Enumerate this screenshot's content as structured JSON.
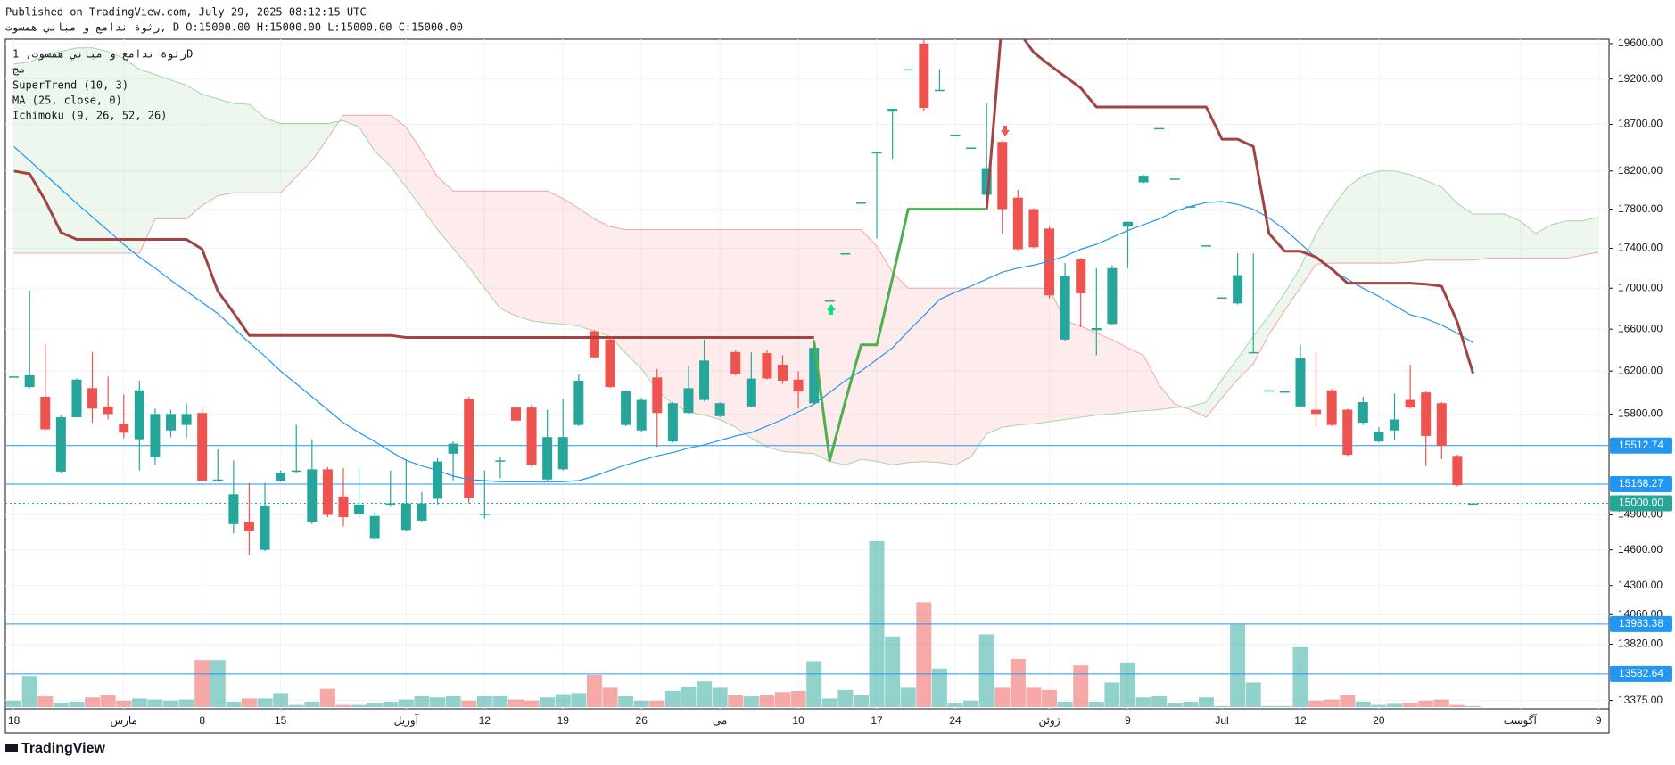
{
  "header": {
    "published": "Published on TradingView.com, July 29, 2025 08:12:15 UTC",
    "quote": "رثوة ندامع و مباني همسوت, D O:15000.00 H:15000.00 L:15000.00 C:15000.00",
    "symbol_line": "رثوة ندامع و مباني همسوت, 1D",
    "volume_label": "مج",
    "brand": "TradingView"
  },
  "chart_data": {
    "type": "candlestick",
    "log_scale": true,
    "grid": true,
    "up_color": "#26a69a",
    "down_color": "#ef5350",
    "ylim": [
      13310,
      19650
    ],
    "yticks": [
      {
        "value": 19600,
        "label": "19600.00"
      },
      {
        "value": 19200,
        "label": "19200.00"
      },
      {
        "value": 18700,
        "label": "18700.00"
      },
      {
        "value": 18200,
        "label": "18200.00"
      },
      {
        "value": 17800,
        "label": "17800.00"
      },
      {
        "value": 17400,
        "label": "17400.00"
      },
      {
        "value": 17000,
        "label": "17000.00"
      },
      {
        "value": 16600,
        "label": "16600.00"
      },
      {
        "value": 16200,
        "label": "16200.00"
      },
      {
        "value": 15800,
        "label": "15800.00"
      },
      {
        "value": 14900,
        "label": "14900.00"
      },
      {
        "value": 14600,
        "label": "14600.00"
      },
      {
        "value": 14300,
        "label": "14300.00"
      },
      {
        "value": 14060,
        "label": "14060.00"
      },
      {
        "value": 13820,
        "label": "13820.00"
      },
      {
        "value": 13375,
        "label": "13375.00"
      }
    ],
    "categories": [
      "18",
      null,
      null,
      null,
      null,
      null,
      null,
      "مارس",
      null,
      null,
      null,
      null,
      "8",
      null,
      null,
      null,
      null,
      "15",
      null,
      null,
      null,
      null,
      null,
      null,
      null,
      "آوریل",
      null,
      null,
      null,
      null,
      "12",
      null,
      null,
      null,
      null,
      "19",
      null,
      null,
      null,
      null,
      "26",
      null,
      null,
      null,
      null,
      "می",
      null,
      null,
      null,
      null,
      "10",
      null,
      null,
      null,
      null,
      "17",
      null,
      null,
      null,
      null,
      "24",
      null,
      null,
      null,
      null,
      null,
      "ژوئن",
      null,
      null,
      null,
      null,
      "9",
      null,
      null,
      null,
      null,
      null,
      "Jul",
      null,
      null,
      null,
      null,
      "12",
      null,
      null,
      null,
      null,
      "20",
      null,
      null,
      null,
      null,
      null,
      null,
      null,
      null,
      "آگوست",
      null,
      null,
      null,
      null,
      "9"
    ],
    "open": [
      16150,
      16050,
      15960,
      15280,
      15770,
      16040,
      15870,
      15710,
      15570,
      15410,
      15650,
      15700,
      15810,
      15200,
      14820,
      14840,
      14600,
      15200,
      15280,
      14840,
      15300,
      15060,
      14910,
      14700,
      14990,
      14770,
      14850,
      15040,
      15440,
      15940,
      14900,
      15370,
      15860,
      15860,
      15210,
      15300,
      15700,
      16580,
      16500,
      15700,
      15650,
      16140,
      15550,
      15810,
      15930,
      15780,
      16380,
      15870,
      16370,
      16260,
      16120,
      15900,
      16880,
      17350,
      17870,
      18400,
      18840,
      19310,
      19600,
      19080,
      18590,
      18450,
      17950,
      18510,
      17920,
      17800,
      17600,
      16500,
      17290,
      16590,
      16650,
      17620,
      18080,
      18660,
      18120,
      17830,
      17430,
      16910,
      16850,
      16380,
      16020,
      16010,
      15870,
      15840,
      16020,
      15840,
      15720,
      15550,
      15650,
      15930,
      16000,
      15900,
      15420,
      15000,
      null,
      null,
      null,
      null,
      null,
      null,
      null,
      null
    ],
    "high": [
      16150,
      16980,
      16450,
      15790,
      16130,
      16380,
      16150,
      15980,
      16110,
      15850,
      15840,
      15900,
      15870,
      15480,
      15380,
      15180,
      15180,
      15290,
      15700,
      15570,
      15320,
      15310,
      15310,
      14920,
      15290,
      15390,
      15100,
      15400,
      15550,
      15960,
      15290,
      15410,
      15870,
      15890,
      15840,
      15940,
      16170,
      16590,
      16510,
      16020,
      15950,
      16220,
      15910,
      16250,
      16500,
      15910,
      16400,
      16380,
      16400,
      16350,
      16200,
      16500,
      16880,
      17350,
      17870,
      18400,
      18870,
      19310,
      19650,
      19310,
      18590,
      18450,
      18930,
      18520,
      18000,
      17810,
      17620,
      17250,
      17300,
      17200,
      17230,
      17670,
      18160,
      18660,
      18120,
      17830,
      17430,
      16910,
      17350,
      17350,
      16020,
      16010,
      16450,
      16380,
      16030,
      15850,
      15960,
      15680,
      15990,
      16260,
      16010,
      15910,
      15430,
      15000,
      null,
      null,
      null,
      null,
      null,
      null,
      null,
      null
    ],
    "low": [
      16150,
      16040,
      15650,
      15270,
      15770,
      15720,
      15750,
      15580,
      15290,
      15340,
      15590,
      15580,
      15190,
      15190,
      14740,
      14560,
      14590,
      15190,
      15270,
      14820,
      14880,
      14800,
      14870,
      14680,
      14970,
      14760,
      14840,
      14990,
      15200,
      15000,
      14870,
      15220,
      15730,
      15320,
      15200,
      15290,
      15690,
      16320,
      16040,
      15690,
      15640,
      15500,
      15540,
      15800,
      15920,
      15770,
      16160,
      15860,
      16120,
      16080,
      15850,
      15890,
      16880,
      17350,
      17870,
      17500,
      18330,
      19310,
      18850,
      19080,
      18590,
      18450,
      17940,
      17550,
      17380,
      17400,
      16900,
      16490,
      16620,
      16350,
      16640,
      17200,
      18070,
      18660,
      18120,
      17830,
      17430,
      16910,
      16840,
      16380,
      16020,
      16010,
      15860,
      15690,
      15690,
      15420,
      15700,
      15540,
      15560,
      15850,
      15330,
      15390,
      15150,
      15000,
      null,
      null,
      null,
      null,
      null,
      null,
      null,
      null
    ],
    "close": [
      16150,
      16160,
      15660,
      15770,
      16120,
      15850,
      15800,
      15630,
      16020,
      15800,
      15800,
      15800,
      15200,
      15210,
      15080,
      14760,
      14980,
      15270,
      15290,
      15300,
      14900,
      14880,
      14990,
      14890,
      15000,
      15000,
      15000,
      15370,
      15530,
      15050,
      14910,
      15380,
      15740,
      15340,
      15590,
      15590,
      16110,
      16330,
      16050,
      16010,
      15930,
      15810,
      15900,
      16040,
      16300,
      15900,
      16170,
      16130,
      16130,
      16110,
      16010,
      16420,
      16880,
      17350,
      17870,
      18400,
      18870,
      19310,
      18880,
      19080,
      18590,
      18450,
      18230,
      17800,
      17390,
      17410,
      16930,
      17120,
      16950,
      16610,
      17200,
      17670,
      18150,
      18660,
      18120,
      17830,
      17430,
      16910,
      17130,
      16380,
      16020,
      16010,
      16320,
      15800,
      15700,
      15430,
      15910,
      15640,
      15750,
      15860,
      15600,
      15510,
      15160,
      15000,
      null,
      null,
      null,
      null,
      null,
      null,
      null,
      null
    ],
    "volume": [
      6,
      29,
      10,
      4,
      5,
      9,
      11,
      6,
      8,
      7,
      6,
      7,
      44,
      44,
      5,
      8,
      8,
      13,
      2,
      5,
      17,
      2,
      2,
      4,
      5,
      7,
      10,
      9,
      10,
      6,
      10,
      10,
      7,
      6,
      9,
      12,
      13,
      30,
      18,
      10,
      6,
      6,
      15,
      19,
      24,
      18,
      11,
      10,
      11,
      14,
      15,
      43,
      8,
      16,
      11,
      155,
      66,
      18,
      98,
      36,
      4,
      6,
      68,
      18,
      45,
      18,
      16,
      5,
      39,
      5,
      23,
      41,
      9,
      10,
      4,
      5,
      9,
      1,
      77,
      23,
      1,
      1,
      56,
      6,
      7,
      11,
      5,
      2,
      3,
      4,
      6,
      7,
      2,
      1,
      null,
      null,
      null,
      null,
      null,
      null,
      null,
      null
    ],
    "series": [
      {
        "name": "MA (25, close, 0)",
        "color": "#2196f3",
        "values": [
          18460,
          18310,
          18160,
          18010,
          17860,
          17720,
          17580,
          17440,
          17310,
          17200,
          17080,
          16970,
          16860,
          16750,
          16610,
          16470,
          16340,
          16200,
          16080,
          15960,
          15840,
          15720,
          15630,
          15550,
          15460,
          15380,
          15330,
          15290,
          15240,
          15210,
          15200,
          15190,
          15190,
          15190,
          15190,
          15190,
          15200,
          15240,
          15290,
          15340,
          15380,
          15420,
          15450,
          15490,
          15520,
          15560,
          15600,
          15630,
          15690,
          15750,
          15820,
          15890,
          16000,
          16110,
          16200,
          16310,
          16420,
          16580,
          16730,
          16890,
          16960,
          17020,
          17090,
          17160,
          17200,
          17230,
          17270,
          17320,
          17390,
          17440,
          17510,
          17580,
          17640,
          17700,
          17780,
          17830,
          17870,
          17880,
          17850,
          17800,
          17710,
          17590,
          17450,
          17300,
          17180,
          17090,
          17000,
          16920,
          16830,
          16740,
          16700,
          16640,
          16560,
          16470,
          null,
          null,
          null,
          null,
          null,
          null,
          null,
          null
        ]
      }
    ],
    "supertrend": {
      "name": "SuperTrend (10, 3)",
      "up_color": "#4caf50",
      "down_color": "#a34444",
      "up": [
        null,
        null,
        null,
        null,
        null,
        null,
        null,
        null,
        null,
        null,
        null,
        null,
        null,
        null,
        null,
        null,
        null,
        null,
        null,
        null,
        null,
        null,
        null,
        null,
        null,
        null,
        null,
        null,
        null,
        null,
        null,
        null,
        null,
        null,
        null,
        null,
        null,
        null,
        null,
        null,
        null,
        null,
        null,
        null,
        null,
        null,
        null,
        null,
        null,
        null,
        null,
        16480,
        15380,
        15920,
        16450,
        16450,
        17100,
        17800,
        17800,
        17800,
        17800,
        17800,
        17800,
        null,
        null,
        null,
        null,
        null,
        null,
        null,
        null,
        null,
        null,
        null,
        null,
        null,
        null,
        null,
        null,
        null,
        null,
        null,
        null,
        null,
        null,
        null,
        null,
        null,
        null,
        null,
        null,
        null,
        null,
        null,
        null,
        null,
        null,
        null,
        null,
        null,
        null,
        null
      ],
      "down": [
        18200,
        18170,
        17890,
        17560,
        17490,
        17490,
        17490,
        17490,
        17490,
        17490,
        17490,
        17490,
        17390,
        16970,
        16760,
        16540,
        16540,
        16540,
        16540,
        16540,
        16540,
        16540,
        16540,
        16540,
        16540,
        16520,
        16520,
        16520,
        16520,
        16520,
        16520,
        16520,
        16520,
        16520,
        16520,
        16520,
        16520,
        16520,
        16520,
        16520,
        16520,
        16520,
        16520,
        16520,
        16520,
        16520,
        16520,
        16520,
        16520,
        16520,
        16520,
        16520,
        null,
        null,
        null,
        null,
        null,
        null,
        null,
        null,
        null,
        null,
        17800,
        19900,
        19750,
        19500,
        19360,
        19230,
        19100,
        18890,
        18890,
        18890,
        18890,
        18890,
        18890,
        18890,
        18890,
        18540,
        18540,
        18460,
        17550,
        17370,
        17370,
        17310,
        17190,
        17050,
        17050,
        17050,
        17050,
        17050,
        17040,
        17020,
        16670,
        16180,
        null,
        null,
        null,
        null,
        null,
        null,
        null,
        null
      ]
    },
    "ichimoku": {
      "name": "Ichimoku (9, 26, 52, 26)",
      "span_a_color": "#a5d6a7",
      "span_b_color": "#f4a6a6",
      "bull_fill": "rgba(76,175,80,0.1)",
      "bear_fill": "rgba(242,54,69,0.1)",
      "span_a": [
        19370,
        19390,
        19470,
        19510,
        19550,
        19550,
        19510,
        19430,
        19310,
        19250,
        19190,
        19130,
        19030,
        18980,
        18930,
        18920,
        18770,
        18710,
        18710,
        18710,
        18710,
        18740,
        18670,
        18410,
        18250,
        18030,
        17810,
        17590,
        17400,
        17210,
        17000,
        16800,
        16730,
        16680,
        16660,
        16650,
        16630,
        16580,
        16530,
        16370,
        16220,
        16020,
        15890,
        15820,
        15790,
        15750,
        15680,
        15580,
        15500,
        15460,
        15450,
        15440,
        15370,
        15340,
        15390,
        15370,
        15340,
        15360,
        15370,
        15360,
        15340,
        15410,
        15620,
        15680,
        15700,
        15710,
        15730,
        15750,
        15770,
        15790,
        15800,
        15820,
        15830,
        15840,
        15860,
        15870,
        15910,
        16120,
        16320,
        16530,
        16730,
        16950,
        17210,
        17550,
        17810,
        18030,
        18150,
        18200,
        18200,
        18160,
        18100,
        18030,
        17860,
        17750,
        17750,
        17750,
        17680,
        17550,
        17640,
        17680,
        17680,
        17720
      ],
      "span_b": [
        17350,
        17350,
        17350,
        17350,
        17350,
        17350,
        17350,
        17350,
        17350,
        17700,
        17700,
        17700,
        17840,
        17940,
        17970,
        17970,
        17970,
        17970,
        18140,
        18310,
        18550,
        18800,
        18800,
        18800,
        18800,
        18670,
        18410,
        18140,
        17990,
        17990,
        17990,
        17990,
        17990,
        17990,
        17990,
        17910,
        17810,
        17700,
        17620,
        17590,
        17590,
        17590,
        17590,
        17590,
        17590,
        17590,
        17590,
        17590,
        17590,
        17590,
        17590,
        17590,
        17590,
        17590,
        17590,
        17420,
        17160,
        17000,
        17000,
        17000,
        17000,
        17000,
        17000,
        17000,
        17000,
        17000,
        17000,
        16680,
        16630,
        16560,
        16500,
        16420,
        16350,
        16070,
        15890,
        15840,
        15770,
        15950,
        16120,
        16270,
        16550,
        16780,
        17010,
        17240,
        17250,
        17250,
        17250,
        17250,
        17250,
        17260,
        17280,
        17280,
        17280,
        17280,
        17300,
        17300,
        17300,
        17300,
        17300,
        17300,
        17330,
        17360
      ]
    },
    "price_lines": [
      {
        "price": 15512.74,
        "color": "#2196f3"
      },
      {
        "price": 15168.27,
        "color": "#2196f3"
      },
      {
        "price": {
          "value": 15000,
          "label": "15000.00"
        },
        "color": "#26a69a",
        "dotted": true
      },
      {
        "price": 13983.38,
        "color": "#2196f3"
      },
      {
        "price": 13582.64,
        "color": "#2196f3"
      }
    ]
  }
}
